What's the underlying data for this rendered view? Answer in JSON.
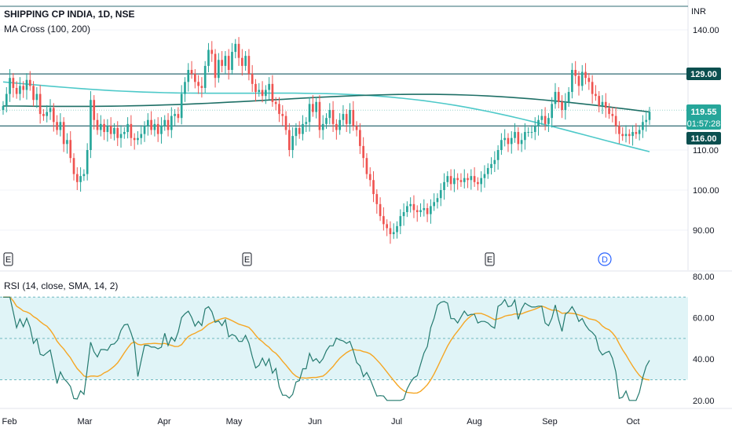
{
  "header": {
    "symbol_title": "SHIPPING CP INDIA, 1D, NSE",
    "indicator_label": "MA Cross (100, 200)",
    "currency": "INR"
  },
  "rsi_panel": {
    "label": "RSI (14, close, SMA, 14, 2)"
  },
  "earnings_markers": [
    "E",
    "E",
    "E"
  ],
  "dividend_marker": "D",
  "price_badges": {
    "resistance": "129.00",
    "last_price": "119.55",
    "countdown": "01:57:28",
    "support": "116.00"
  },
  "colors": {
    "up": "#26a69a",
    "down": "#ef5350",
    "ma100": "#1e6f66",
    "ma200": "#4ec9c9",
    "rsi_line": "#247a6f",
    "rsi_sma": "#f5a623",
    "hline": "#2f6b73",
    "badge_dark": "#0b4f4f",
    "badge_last": "#26a69a",
    "rsi_band": "#e0f4f7",
    "dividend": "#2962ff"
  },
  "chart_data": [
    {
      "type": "candlestick",
      "title": "SHIPPING CP INDIA, 1D, NSE",
      "x_ticks": [
        "Feb",
        "Mar",
        "Apr",
        "May",
        "Jun",
        "Jul",
        "Aug",
        "Sep",
        "Oct"
      ],
      "y_ticks": [
        "140.00",
        "110.00",
        "100.00",
        "90.00"
      ],
      "ylim": [
        85,
        145
      ],
      "horizontal_levels": [
        129,
        116
      ],
      "ohlc_close": [
        121.0,
        124.0,
        128.0,
        125.5,
        124.0,
        126.0,
        125.0,
        127.5,
        126.0,
        122.5,
        124.0,
        119.0,
        118.5,
        119.5,
        120.5,
        117.0,
        115.0,
        117.0,
        111.5,
        112.5,
        108.0,
        104.0,
        102.0,
        103.5,
        104.0,
        110.0,
        122.5,
        117.5,
        115.0,
        116.5,
        114.5,
        116.0,
        114.0,
        115.5,
        113.0,
        114.0,
        114.5,
        116.5,
        113.0,
        112.5,
        113.0,
        114.0,
        116.0,
        117.5,
        115.0,
        116.5,
        114.0,
        116.0,
        117.5,
        115.0,
        118.5,
        119.0,
        118.0,
        124.0,
        127.0,
        130.0,
        129.0,
        127.0,
        126.0,
        125.5,
        131.0,
        135.0,
        134.0,
        128.0,
        132.5,
        131.0,
        133.5,
        130.0,
        134.5,
        136.5,
        133.0,
        131.0,
        133.5,
        129.0,
        126.5,
        124.5,
        125.0,
        123.5,
        125.0,
        126.5,
        122.0,
        121.5,
        119.0,
        118.5,
        115.0,
        110.0,
        113.5,
        115.5,
        114.0,
        116.5,
        117.0,
        121.5,
        119.5,
        122.0,
        115.0,
        116.5,
        118.0,
        120.0,
        116.5,
        115.0,
        117.5,
        119.0,
        116.5,
        120.0,
        116.0,
        115.0,
        111.0,
        108.0,
        104.0,
        102.5,
        99.0,
        96.5,
        93.5,
        91.5,
        90.5,
        89.0,
        89.5,
        91.0,
        93.5,
        94.5,
        96.0,
        96.5,
        95.0,
        94.5,
        95.0,
        95.5,
        94.0,
        96.0,
        97.0,
        98.0,
        100.0,
        102.0,
        103.5,
        101.5,
        103.0,
        102.5,
        102.0,
        103.0,
        102.5,
        103.5,
        102.0,
        101.5,
        103.0,
        104.0,
        105.5,
        106.5,
        107.5,
        110.0,
        112.5,
        113.0,
        111.5,
        113.0,
        114.5,
        111.5,
        112.5,
        114.5,
        114.5,
        114.5,
        116.0,
        117.5,
        118.5,
        116.5,
        118.0,
        121.5,
        124.5,
        122.0,
        120.0,
        122.0,
        124.5,
        130.0,
        128.5,
        126.0,
        129.5,
        128.0,
        127.0,
        124.0,
        123.5,
        121.0,
        122.0,
        120.5,
        119.0,
        118.5,
        116.0,
        114.0,
        113.5,
        114.0,
        113.5,
        114.5,
        114.0,
        115.0,
        117.0,
        117.5,
        119.55
      ],
      "series": [
        {
          "name": "MA Cross (100, 200)",
          "values": []
        }
      ]
    },
    {
      "type": "line",
      "title": "RSI (14, close, SMA, 14, 2)",
      "y_ticks": [
        "80.00",
        "60.00",
        "40.00",
        "20.00"
      ],
      "ylim": [
        18,
        82
      ],
      "reference_levels": [
        70,
        50,
        30
      ],
      "series": [
        {
          "name": "RSI",
          "values": []
        },
        {
          "name": "SMA",
          "values": []
        }
      ]
    }
  ]
}
